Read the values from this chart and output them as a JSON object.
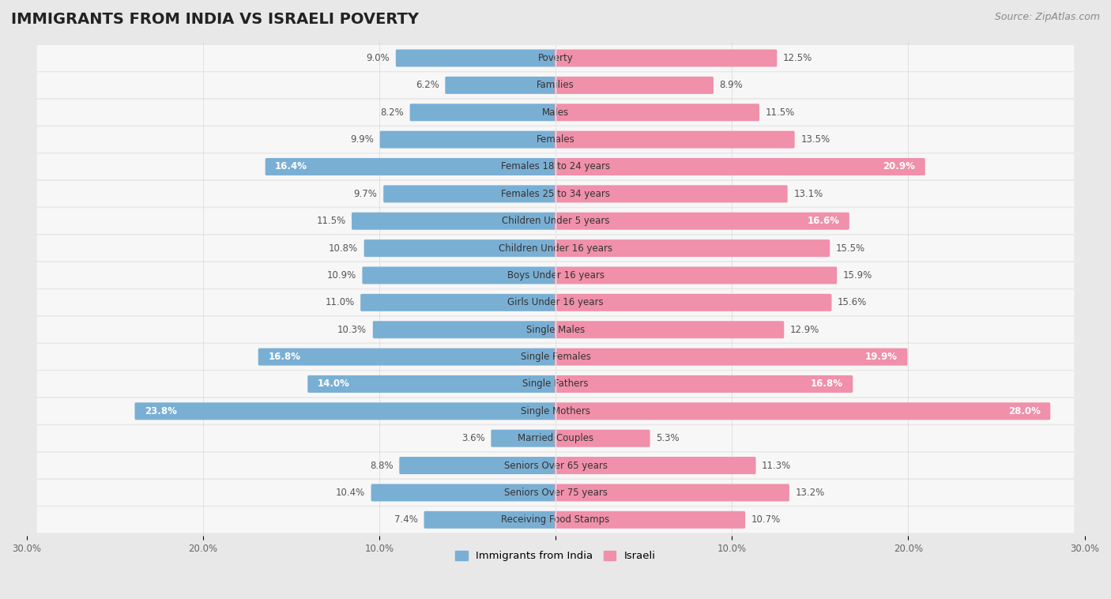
{
  "title": "IMMIGRANTS FROM INDIA VS ISRAELI POVERTY",
  "source": "Source: ZipAtlas.com",
  "categories": [
    "Poverty",
    "Families",
    "Males",
    "Females",
    "Females 18 to 24 years",
    "Females 25 to 34 years",
    "Children Under 5 years",
    "Children Under 16 years",
    "Boys Under 16 years",
    "Girls Under 16 years",
    "Single Males",
    "Single Females",
    "Single Fathers",
    "Single Mothers",
    "Married Couples",
    "Seniors Over 65 years",
    "Seniors Over 75 years",
    "Receiving Food Stamps"
  ],
  "india_values": [
    9.0,
    6.2,
    8.2,
    9.9,
    16.4,
    9.7,
    11.5,
    10.8,
    10.9,
    11.0,
    10.3,
    16.8,
    14.0,
    23.8,
    3.6,
    8.8,
    10.4,
    7.4
  ],
  "israeli_values": [
    12.5,
    8.9,
    11.5,
    13.5,
    20.9,
    13.1,
    16.6,
    15.5,
    15.9,
    15.6,
    12.9,
    19.9,
    16.8,
    28.0,
    5.3,
    11.3,
    13.2,
    10.7
  ],
  "india_color": "#7aafd4",
  "israeli_color": "#f090aa",
  "background_color": "#e8e8e8",
  "bar_background": "#f7f7f7",
  "row_background": "#f2f2f2",
  "axis_max": 30.0,
  "legend_india": "Immigrants from India",
  "legend_israeli": "Israeli",
  "title_fontsize": 14,
  "source_fontsize": 9,
  "label_fontsize": 8.5,
  "value_fontsize": 8.5,
  "india_inside_threshold": 13.0,
  "israeli_inside_threshold": 16.0
}
